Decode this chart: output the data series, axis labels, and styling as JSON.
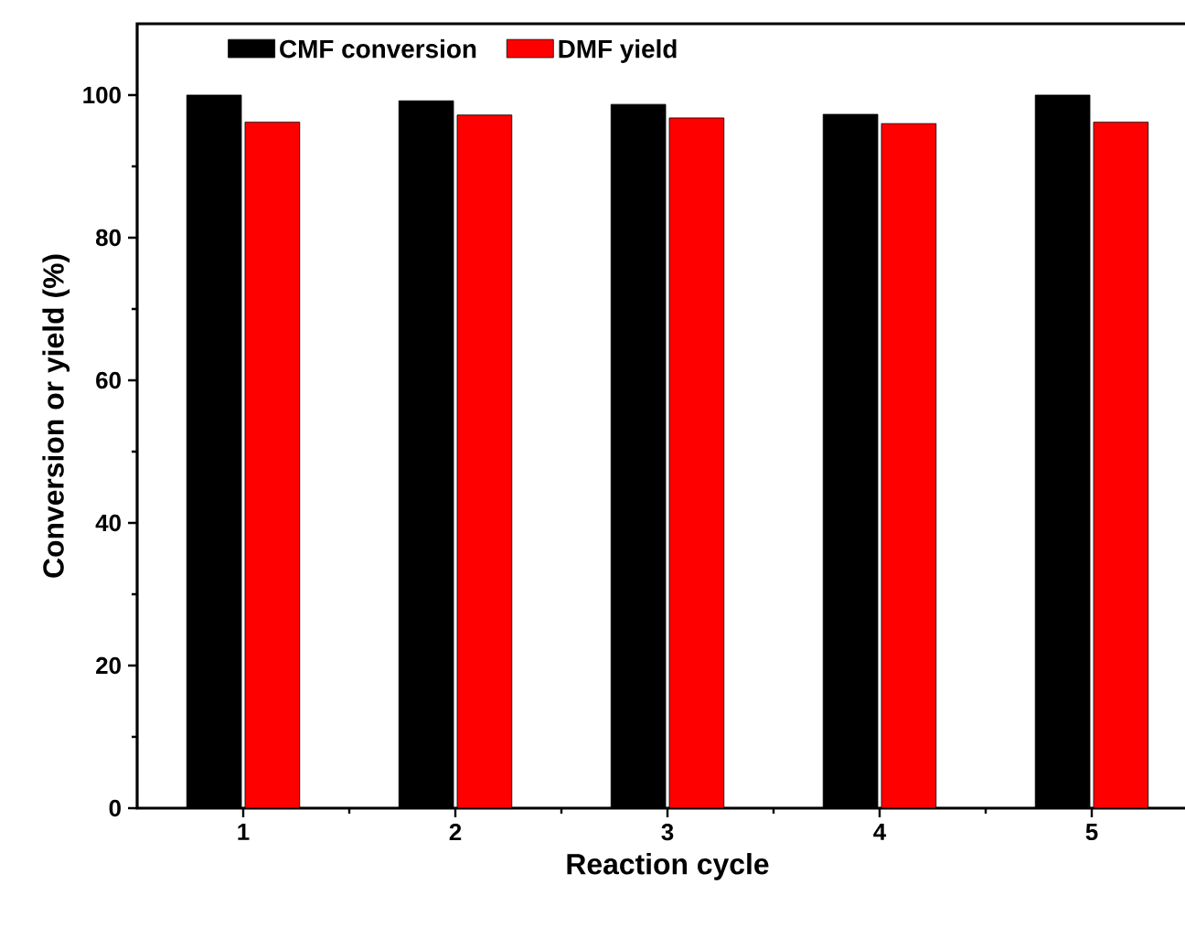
{
  "chart_data": {
    "type": "bar",
    "xlabel": "Reaction cycle",
    "ylabel": "Conversion or yield (%)",
    "categories": [
      "1",
      "2",
      "3",
      "4",
      "5"
    ],
    "series": [
      {
        "name": "CMF conversion",
        "color": "#000000",
        "values": [
          100,
          99.2,
          98.7,
          97.3,
          100
        ]
      },
      {
        "name": "DMF yield",
        "color": "#ff0000",
        "values": [
          96.2,
          97.2,
          96.8,
          96.0,
          96.2
        ]
      }
    ],
    "ylim": [
      0,
      110
    ],
    "yticks": [
      0,
      20,
      40,
      60,
      80,
      100
    ],
    "grid": false,
    "legend": "top left"
  }
}
